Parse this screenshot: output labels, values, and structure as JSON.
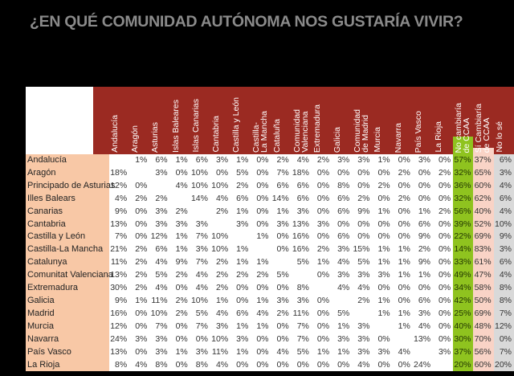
{
  "title": "¿EN QUÉ COMUNIDAD AUTÓNOMA NOS GUSTARÍA VIVIR?",
  "colors": {
    "header": "#9b2a22",
    "row_label": "#f8c8a6",
    "no_cambiaria": "#8fc31f",
    "si_cambiaria": "#f9d3c6",
    "no_lo_se": "#d9d9d9",
    "title": "#8a8a8a"
  },
  "chart_data": {
    "type": "table",
    "title": "¿EN QUÉ COMUNIDAD AUTÓNOMA NOS GUSTARÍA VIVIR?",
    "columns": [
      "Andalucía",
      "Aragón",
      "Asturias",
      "Islas Baleares",
      "Islas Canarias",
      "Cantabria",
      "Castilla y León",
      "Castilla-\nLa Mancha",
      "Cataluña",
      "Comunidad\nValenciana",
      "Extremadura",
      "Galicia",
      "Comunidad\nde Madrid",
      "Murcia",
      "Navarra",
      "País Vasco",
      "La Rioja",
      "No cambiaría\nde CCAA",
      "Sí Cambiaría\nde CCAA",
      "No lo sé"
    ],
    "rows": [
      {
        "label": "Andalucía",
        "values": [
          "",
          "1%",
          "6%",
          "1%",
          "6%",
          "3%",
          "1%",
          "0%",
          "2%",
          "4%",
          "2%",
          "3%",
          "3%",
          "1%",
          "0%",
          "3%",
          "0%",
          "57%",
          "37%",
          "6%"
        ]
      },
      {
        "label": "Aragón",
        "values": [
          "18%",
          "",
          "3%",
          "0%",
          "10%",
          "0%",
          "5%",
          "0%",
          "7%",
          "18%",
          "0%",
          "0%",
          "0%",
          "0%",
          "2%",
          "0%",
          "2%",
          "32%",
          "65%",
          "3%"
        ]
      },
      {
        "label": "Principado de Asturias",
        "values": [
          "12%",
          "0%",
          "",
          "4%",
          "10%",
          "10%",
          "2%",
          "0%",
          "6%",
          "6%",
          "0%",
          "8%",
          "0%",
          "2%",
          "0%",
          "0%",
          "0%",
          "36%",
          "60%",
          "4%"
        ]
      },
      {
        "label": "Illes Balears",
        "values": [
          "4%",
          "2%",
          "2%",
          "",
          "14%",
          "4%",
          "6%",
          "0%",
          "14%",
          "6%",
          "0%",
          "6%",
          "2%",
          "0%",
          "2%",
          "0%",
          "0%",
          "32%",
          "62%",
          "6%"
        ]
      },
      {
        "label": "Canarias",
        "values": [
          "9%",
          "0%",
          "3%",
          "2%",
          "",
          "2%",
          "1%",
          "0%",
          "1%",
          "3%",
          "0%",
          "6%",
          "9%",
          "1%",
          "0%",
          "1%",
          "2%",
          "56%",
          "40%",
          "4%"
        ]
      },
      {
        "label": "Cantabria",
        "values": [
          "13%",
          "0%",
          "3%",
          "3%",
          "3%",
          "",
          "3%",
          "0%",
          "3%",
          "13%",
          "3%",
          "0%",
          "0%",
          "0%",
          "0%",
          "6%",
          "0%",
          "39%",
          "52%",
          "10%"
        ]
      },
      {
        "label": "Castilla y León",
        "values": [
          "7%",
          "0%",
          "12%",
          "1%",
          "7%",
          "10%",
          "",
          "1%",
          "0%",
          "16%",
          "0%",
          "6%",
          "0%",
          "0%",
          "0%",
          "9%",
          "0%",
          "22%",
          "69%",
          "9%"
        ]
      },
      {
        "label": "Castilla-La Mancha",
        "values": [
          "21%",
          "2%",
          "6%",
          "1%",
          "3%",
          "10%",
          "1%",
          "",
          "0%",
          "16%",
          "2%",
          "3%",
          "15%",
          "1%",
          "1%",
          "2%",
          "0%",
          "14%",
          "83%",
          "3%"
        ]
      },
      {
        "label": "Catalunya",
        "values": [
          "11%",
          "2%",
          "4%",
          "9%",
          "7%",
          "2%",
          "1%",
          "1%",
          "",
          "5%",
          "1%",
          "4%",
          "5%",
          "1%",
          "1%",
          "9%",
          "0%",
          "33%",
          "61%",
          "6%"
        ]
      },
      {
        "label": "Comunitat Valenciana",
        "values": [
          "13%",
          "2%",
          "5%",
          "2%",
          "4%",
          "2%",
          "2%",
          "2%",
          "5%",
          "",
          "0%",
          "3%",
          "3%",
          "3%",
          "1%",
          "1%",
          "0%",
          "49%",
          "47%",
          "4%"
        ]
      },
      {
        "label": "Extremadura",
        "values": [
          "30%",
          "2%",
          "4%",
          "0%",
          "4%",
          "2%",
          "0%",
          "0%",
          "0%",
          "8%",
          "",
          "4%",
          "4%",
          "0%",
          "0%",
          "0%",
          "0%",
          "34%",
          "58%",
          "8%"
        ]
      },
      {
        "label": "Galicia",
        "values": [
          "9%",
          "1%",
          "11%",
          "2%",
          "10%",
          "1%",
          "0%",
          "1%",
          "3%",
          "3%",
          "0%",
          "",
          "2%",
          "1%",
          "0%",
          "6%",
          "0%",
          "42%",
          "50%",
          "8%"
        ]
      },
      {
        "label": "Madrid",
        "values": [
          "16%",
          "0%",
          "10%",
          "2%",
          "5%",
          "4%",
          "6%",
          "4%",
          "2%",
          "11%",
          "0%",
          "5%",
          "",
          "1%",
          "1%",
          "3%",
          "0%",
          "25%",
          "69%",
          "7%"
        ]
      },
      {
        "label": "Murcia",
        "values": [
          "12%",
          "0%",
          "7%",
          "0%",
          "7%",
          "3%",
          "1%",
          "1%",
          "0%",
          "7%",
          "0%",
          "1%",
          "3%",
          "",
          "1%",
          "4%",
          "0%",
          "40%",
          "48%",
          "12%"
        ]
      },
      {
        "label": "Navarra",
        "values": [
          "24%",
          "3%",
          "3%",
          "0%",
          "0%",
          "10%",
          "3%",
          "0%",
          "0%",
          "7%",
          "0%",
          "3%",
          "3%",
          "0%",
          "",
          "13%",
          "0%",
          "30%",
          "70%",
          "0%"
        ]
      },
      {
        "label": "País Vasco",
        "values": [
          "13%",
          "0%",
          "3%",
          "1%",
          "3%",
          "11%",
          "1%",
          "0%",
          "4%",
          "5%",
          "1%",
          "1%",
          "3%",
          "3%",
          "4%",
          "",
          "3%",
          "37%",
          "56%",
          "7%"
        ]
      },
      {
        "label": "La Rioja",
        "values": [
          "8%",
          "4%",
          "8%",
          "0%",
          "8%",
          "4%",
          "0%",
          "0%",
          "0%",
          "0%",
          "0%",
          "0%",
          "4%",
          "0%",
          "0%",
          "24%",
          "",
          "20%",
          "60%",
          "20%"
        ]
      }
    ]
  }
}
